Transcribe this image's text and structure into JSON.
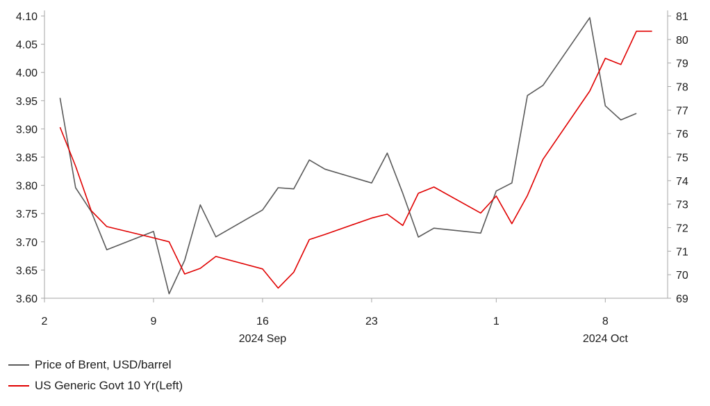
{
  "chart_data": {
    "type": "line",
    "title": "",
    "colors": {
      "brent": "#595959",
      "us10y": "#e00000",
      "axis": "#a6a6a6"
    },
    "left_axis": {
      "ylim": [
        3.6,
        4.1
      ],
      "ticks": [
        "3.60",
        "3.65",
        "3.70",
        "3.75",
        "3.80",
        "3.85",
        "3.90",
        "3.95",
        "4.00",
        "4.05",
        "4.10"
      ]
    },
    "right_axis": {
      "ylim": [
        69,
        81
      ],
      "ticks": [
        "69",
        "70",
        "71",
        "72",
        "73",
        "74",
        "75",
        "76",
        "77",
        "78",
        "79",
        "80",
        "81"
      ]
    },
    "x_axis": {
      "xlim": [
        "2024-09-02",
        "2024-10-12"
      ],
      "tick_days": [
        "2",
        "9",
        "16",
        "23",
        "1",
        "8"
      ],
      "tick_dates": [
        "2024-09-02",
        "2024-09-09",
        "2024-09-16",
        "2024-09-23",
        "2024-10-01",
        "2024-10-08"
      ],
      "month_labels": [
        {
          "label": "2024 Sep",
          "date": "2024-09-16"
        },
        {
          "label": "2024 Oct",
          "date": "2024-10-08"
        }
      ]
    },
    "series": [
      {
        "name": "Price of Brent, USD/barrel",
        "axis": "right",
        "points": [
          [
            "2024-09-03",
            77.52
          ],
          [
            "2024-09-04",
            73.7
          ],
          [
            "2024-09-05",
            72.69
          ],
          [
            "2024-09-06",
            71.06
          ],
          [
            "2024-09-09",
            71.84
          ],
          [
            "2024-09-10",
            69.19
          ],
          [
            "2024-09-11",
            70.61
          ],
          [
            "2024-09-12",
            72.97
          ],
          [
            "2024-09-13",
            71.61
          ],
          [
            "2024-09-16",
            72.75
          ],
          [
            "2024-09-17",
            73.7
          ],
          [
            "2024-09-18",
            73.65
          ],
          [
            "2024-09-19",
            74.88
          ],
          [
            "2024-09-20",
            74.49
          ],
          [
            "2024-09-23",
            73.9
          ],
          [
            "2024-09-24",
            75.17
          ],
          [
            "2024-09-25",
            73.46
          ],
          [
            "2024-09-26",
            71.6
          ],
          [
            "2024-09-27",
            71.98
          ],
          [
            "2024-09-30",
            71.77
          ],
          [
            "2024-10-01",
            73.56
          ],
          [
            "2024-10-02",
            73.9
          ],
          [
            "2024-10-03",
            77.62
          ],
          [
            "2024-10-04",
            78.05
          ],
          [
            "2024-10-07",
            80.93
          ],
          [
            "2024-10-08",
            77.18
          ],
          [
            "2024-10-09",
            76.58
          ],
          [
            "2024-10-10",
            76.86
          ]
        ]
      },
      {
        "name": "US Generic Govt 10 Yr(Left)",
        "axis": "left",
        "points": [
          [
            "2024-09-03",
            3.903
          ],
          [
            "2024-09-04",
            3.834
          ],
          [
            "2024-09-05",
            3.755
          ],
          [
            "2024-09-06",
            3.727
          ],
          [
            "2024-09-09",
            3.707
          ],
          [
            "2024-09-10",
            3.7
          ],
          [
            "2024-09-11",
            3.643
          ],
          [
            "2024-09-12",
            3.653
          ],
          [
            "2024-09-13",
            3.674
          ],
          [
            "2024-09-16",
            3.652
          ],
          [
            "2024-09-17",
            3.618
          ],
          [
            "2024-09-18",
            3.646
          ],
          [
            "2024-09-19",
            3.704
          ],
          [
            "2024-09-20",
            3.713
          ],
          [
            "2024-09-23",
            3.742
          ],
          [
            "2024-09-24",
            3.749
          ],
          [
            "2024-09-25",
            3.729
          ],
          [
            "2024-09-26",
            3.786
          ],
          [
            "2024-09-27",
            3.797
          ],
          [
            "2024-09-30",
            3.751
          ],
          [
            "2024-10-01",
            3.781
          ],
          [
            "2024-10-02",
            3.732
          ],
          [
            "2024-10-03",
            3.782
          ],
          [
            "2024-10-04",
            3.846
          ],
          [
            "2024-10-07",
            3.967
          ],
          [
            "2024-10-08",
            4.025
          ],
          [
            "2024-10-09",
            4.014
          ],
          [
            "2024-10-10",
            4.073
          ],
          [
            "2024-10-11",
            4.073
          ]
        ]
      }
    ]
  }
}
